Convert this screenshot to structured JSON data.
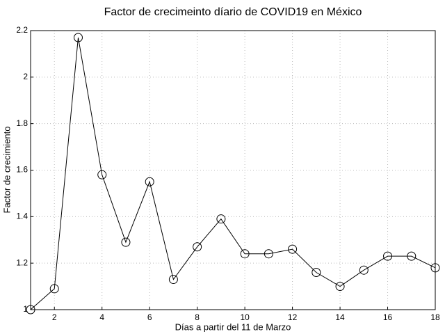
{
  "chart_data": {
    "type": "line",
    "title": "Factor de crecimeinto díario de COVID19 en México",
    "x_label": "Días a partir del 11 de Marzo",
    "y_label": "Factor de crecimiento",
    "x": [
      1,
      2,
      3,
      4,
      5,
      6,
      7,
      8,
      9,
      10,
      11,
      12,
      13,
      14,
      15,
      16,
      17,
      18
    ],
    "series": [
      {
        "color": "#000000",
        "values": [
          1.0,
          1.09,
          2.17,
          1.58,
          1.29,
          1.55,
          1.13,
          1.27,
          1.39,
          1.24,
          1.24,
          1.26,
          1.16,
          1.1,
          1.17,
          1.23,
          1.23,
          1.18
        ]
      }
    ],
    "xlim": [
      1,
      18
    ],
    "ylim": [
      1,
      2.2
    ],
    "xticks": [
      2,
      4,
      6,
      8,
      10,
      12,
      14,
      16,
      18
    ],
    "yticks": [
      1,
      1.2,
      1.4,
      1.6,
      1.8,
      2,
      2.2
    ],
    "grid": true
  }
}
